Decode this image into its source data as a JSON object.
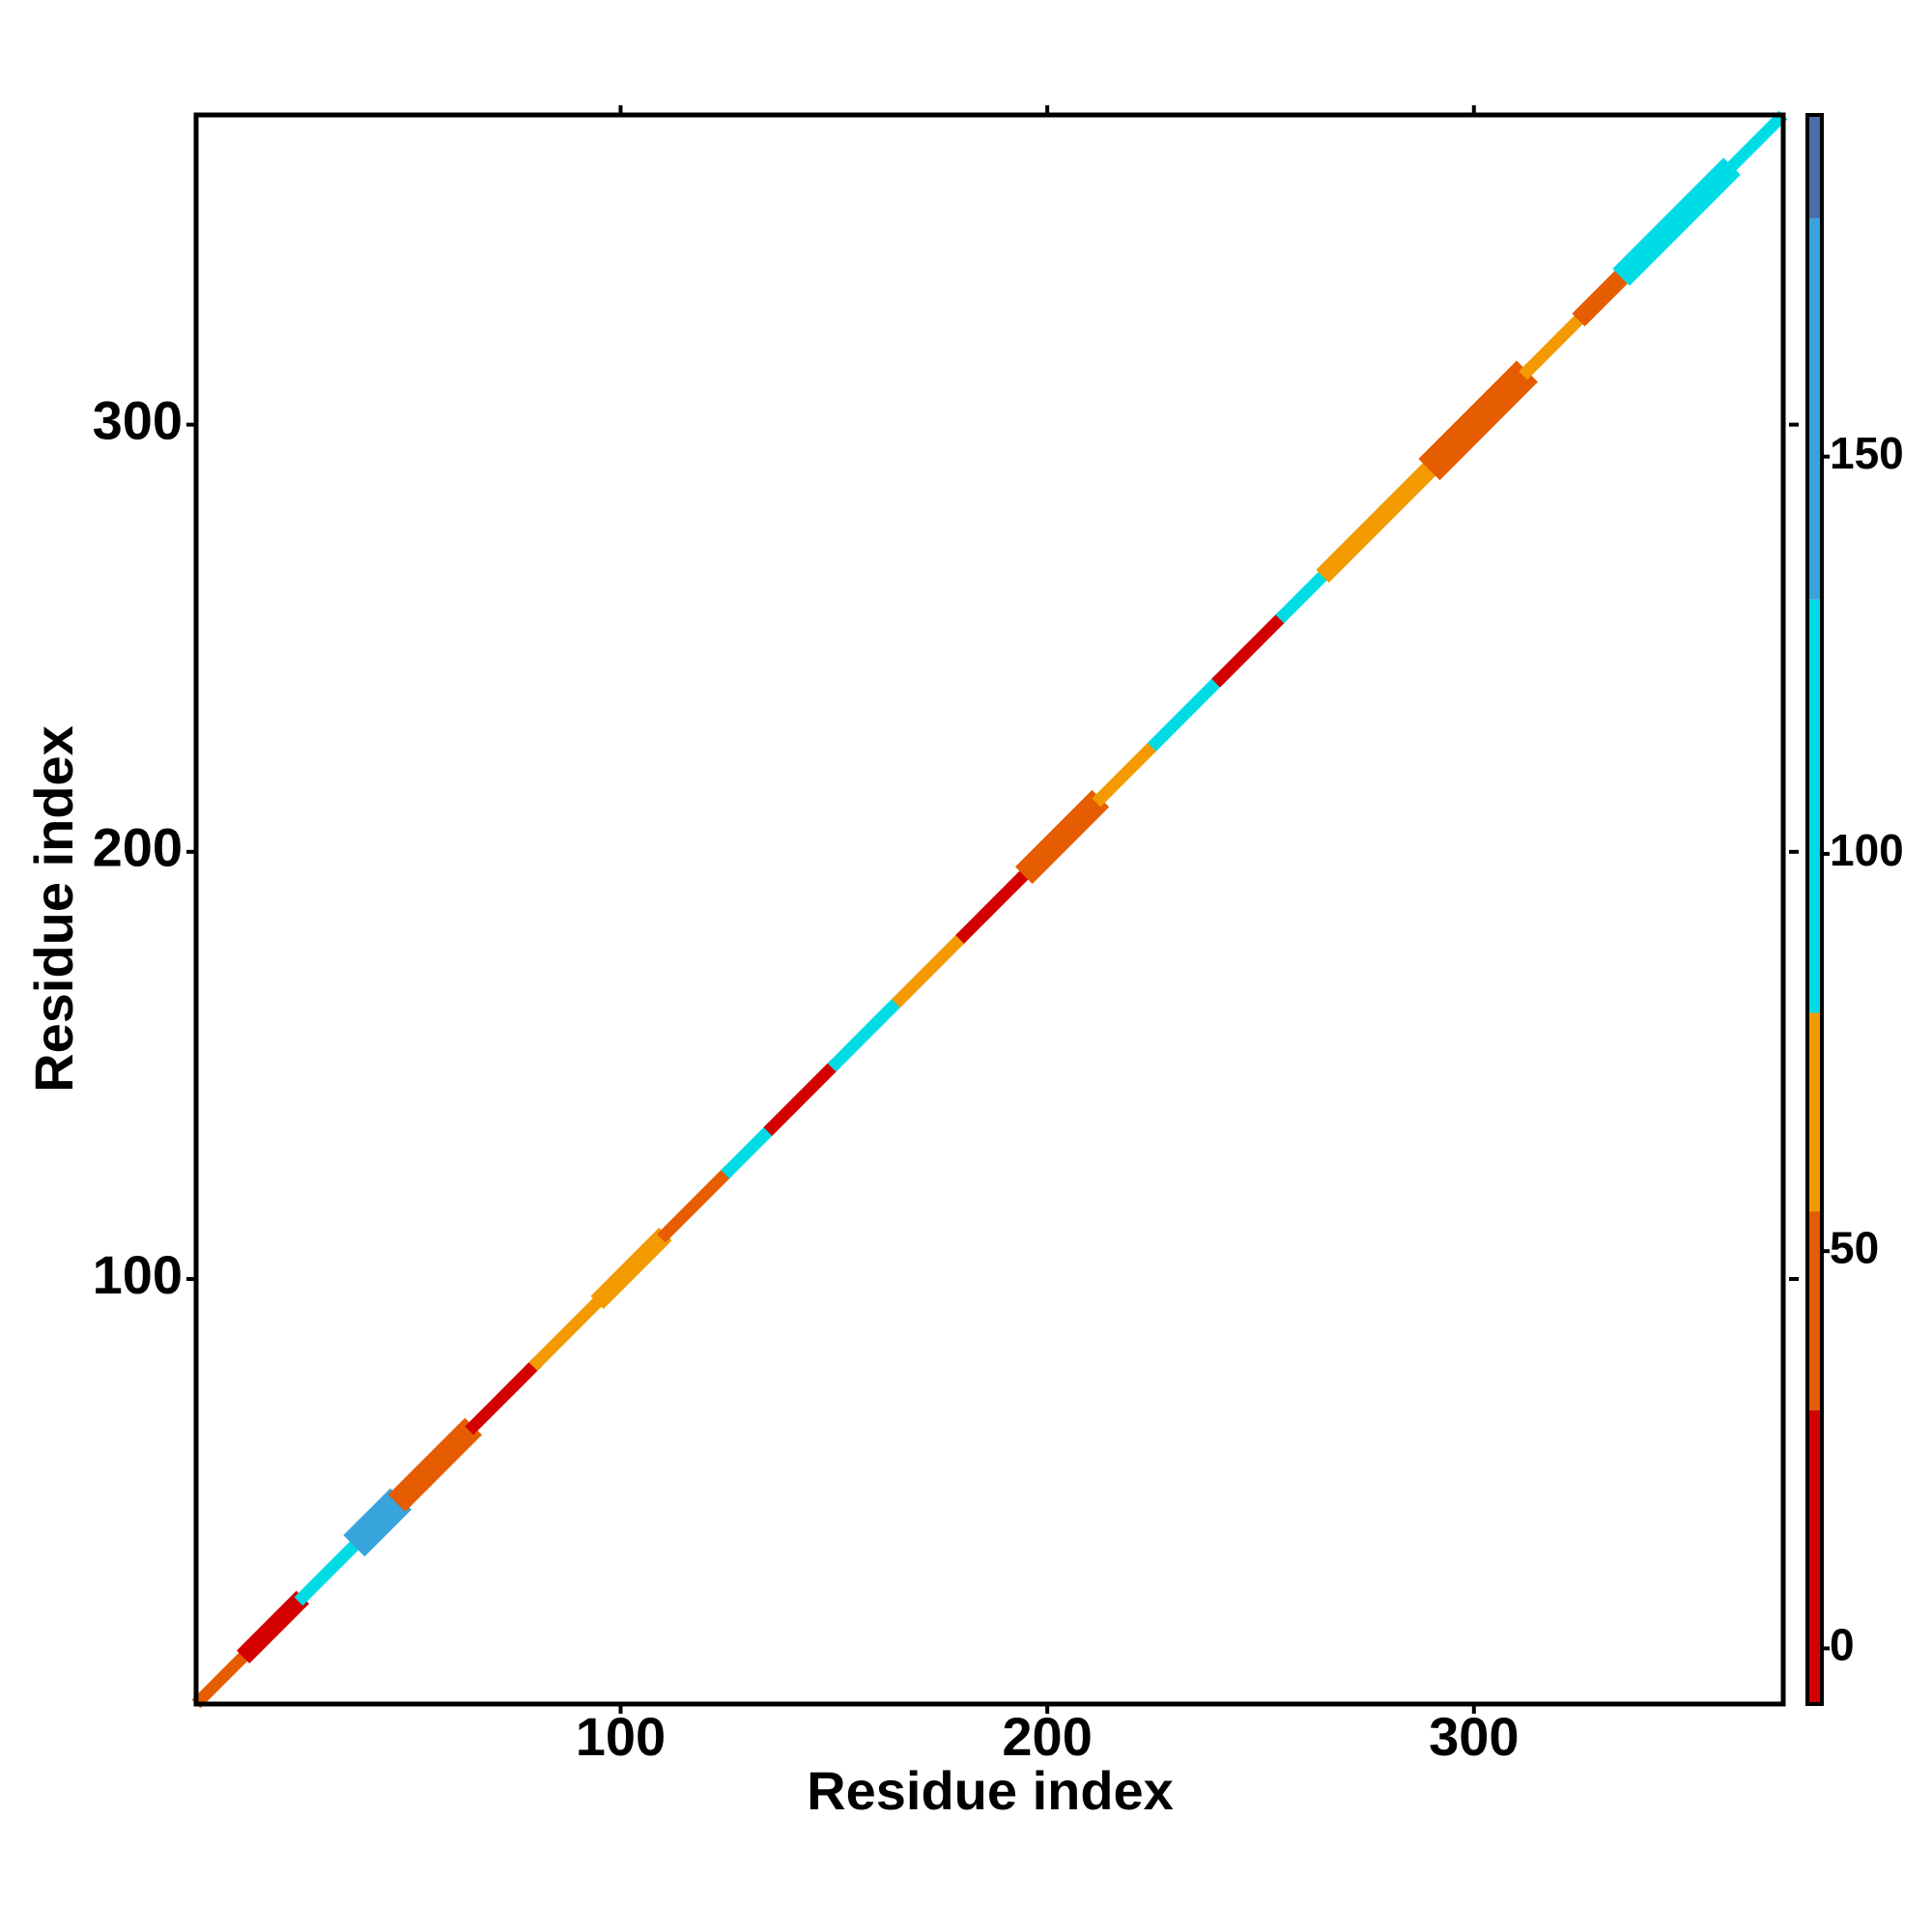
{
  "chart_data": {
    "type": "heatmap",
    "xlabel": "Residue index",
    "ylabel": "Residue index",
    "xlim": [
      0.5,
      372.5
    ],
    "ylim": [
      0.5,
      372.5
    ],
    "xticks": [
      100,
      200,
      300
    ],
    "yticks": [
      100,
      200,
      300
    ],
    "segments": [
      {
        "start": 1,
        "end": 12,
        "halfwidth": 2,
        "value": 45
      },
      {
        "start": 12,
        "end": 25,
        "halfwidth": 3,
        "value": 25
      },
      {
        "start": 25,
        "end": 38,
        "halfwidth": 2,
        "value": 95
      },
      {
        "start": 38,
        "end": 48,
        "halfwidth": 5,
        "value": 140
      },
      {
        "start": 48,
        "end": 65,
        "halfwidth": 4,
        "value": 40
      },
      {
        "start": 65,
        "end": 80,
        "halfwidth": 2,
        "value": 20
      },
      {
        "start": 80,
        "end": 95,
        "halfwidth": 2,
        "value": 60
      },
      {
        "start": 95,
        "end": 110,
        "halfwidth": 3,
        "value": 60
      },
      {
        "start": 110,
        "end": 125,
        "halfwidth": 2,
        "value": 40
      },
      {
        "start": 125,
        "end": 135,
        "halfwidth": 2,
        "value": 90
      },
      {
        "start": 135,
        "end": 150,
        "halfwidth": 2,
        "value": 15
      },
      {
        "start": 150,
        "end": 165,
        "halfwidth": 2,
        "value": 95
      },
      {
        "start": 165,
        "end": 180,
        "halfwidth": 2,
        "value": 60
      },
      {
        "start": 180,
        "end": 195,
        "halfwidth": 2,
        "value": 20
      },
      {
        "start": 195,
        "end": 212,
        "halfwidth": 4,
        "value": 40
      },
      {
        "start": 212,
        "end": 225,
        "halfwidth": 2,
        "value": 70
      },
      {
        "start": 225,
        "end": 240,
        "halfwidth": 2,
        "value": 95
      },
      {
        "start": 240,
        "end": 255,
        "halfwidth": 2,
        "value": 25
      },
      {
        "start": 255,
        "end": 265,
        "halfwidth": 2,
        "value": 90
      },
      {
        "start": 265,
        "end": 290,
        "halfwidth": 3,
        "value": 60
      },
      {
        "start": 290,
        "end": 312,
        "halfwidth": 5,
        "value": 40
      },
      {
        "start": 312,
        "end": 325,
        "halfwidth": 2,
        "value": 60
      },
      {
        "start": 325,
        "end": 335,
        "halfwidth": 3,
        "value": 40
      },
      {
        "start": 335,
        "end": 360,
        "halfwidth": 4,
        "value": 100
      },
      {
        "start": 360,
        "end": 372,
        "halfwidth": 2,
        "value": 95
      }
    ],
    "colorbar": {
      "lim": [
        -7,
        193
      ],
      "ticks": [
        0,
        50,
        100,
        150
      ],
      "bins": [
        -7,
        30,
        55,
        80,
        132,
        180,
        193
      ],
      "colors": [
        "#d40000",
        "#e65c00",
        "#f29a00",
        "#00dce6",
        "#38a4dc",
        "#4a6ea8"
      ]
    }
  }
}
